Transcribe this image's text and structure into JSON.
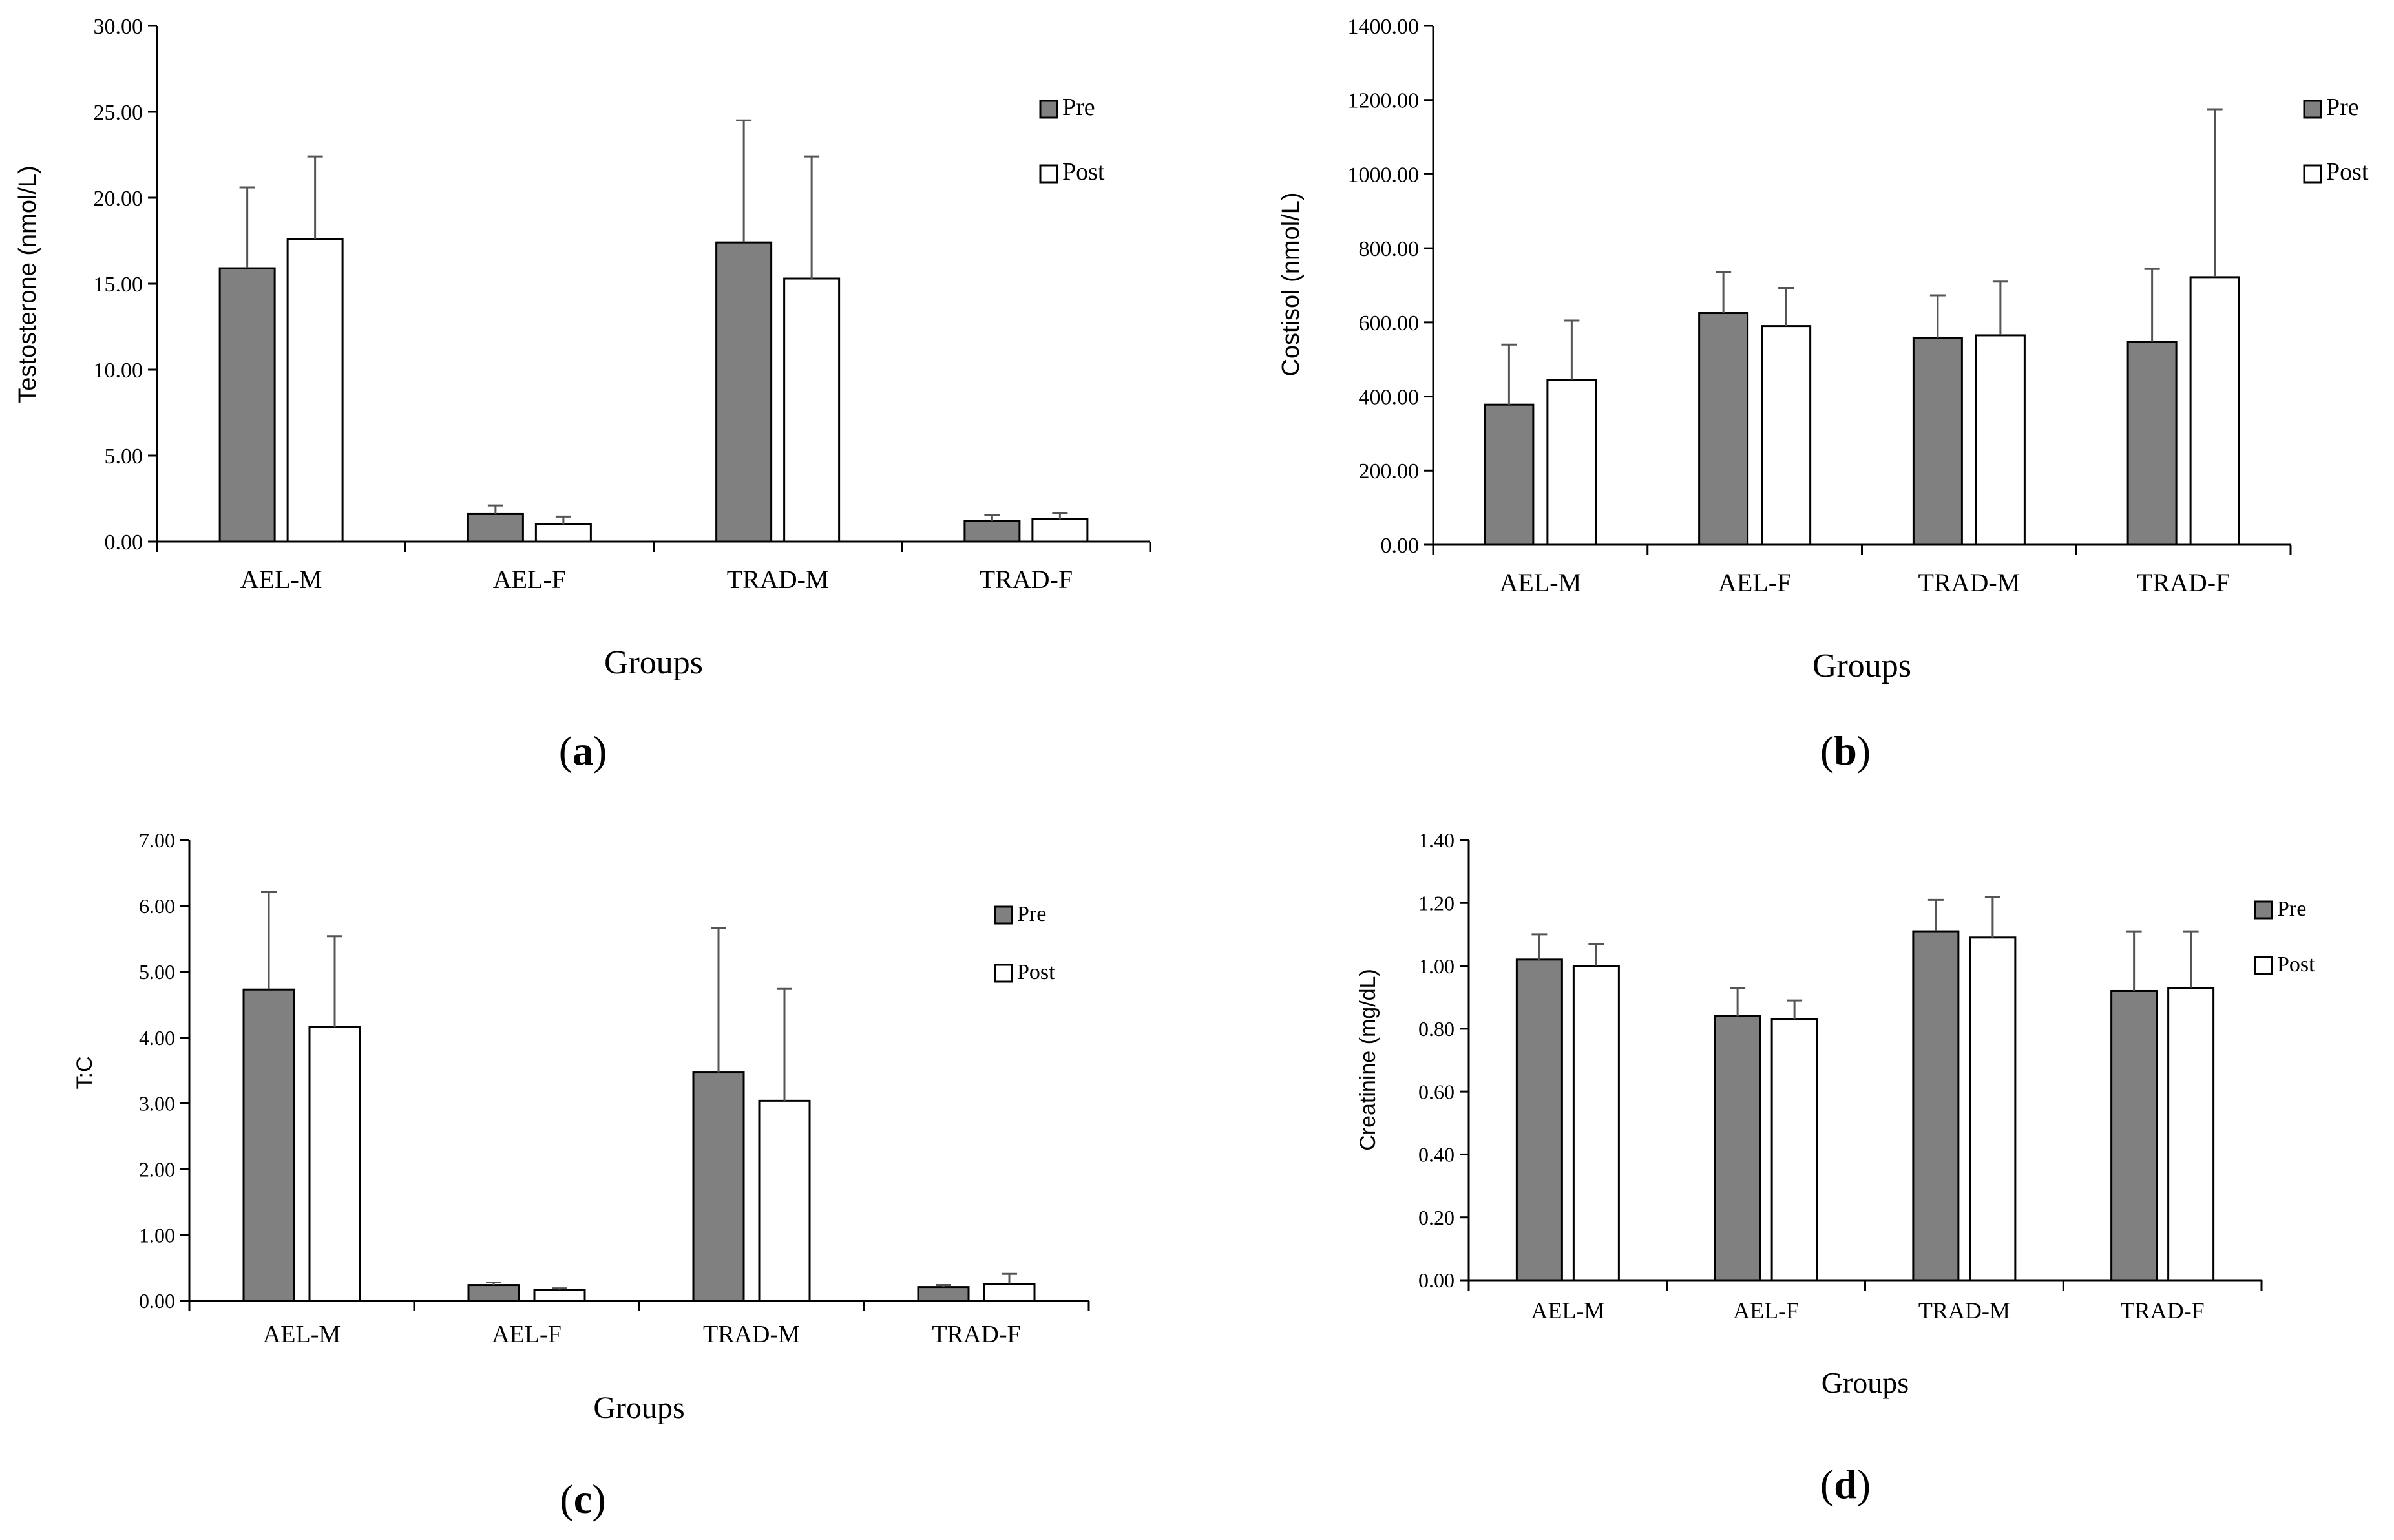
{
  "colors": {
    "pre": "#808080",
    "post": "#ffffff",
    "stroke": "#000000"
  },
  "chart_data": [
    {
      "id": "a",
      "caption": {
        "open": "(",
        "letter": "a",
        "close": ")"
      },
      "type": "bar",
      "title": "",
      "ylabel": "Testosterone (nmol/L)",
      "xlabel": "Groups",
      "ylim": [
        0,
        30
      ],
      "yticks": [
        "0.00",
        "5.00",
        "10.00",
        "15.00",
        "20.00",
        "25.00",
        "30.00"
      ],
      "categories": [
        "AEL-M",
        "AEL-F",
        "TRAD-M",
        "TRAD-F"
      ],
      "legend": "right",
      "series": [
        {
          "name": "Pre",
          "values": [
            15.9,
            1.6,
            17.4,
            1.2
          ],
          "errors": [
            4.7,
            0.5,
            7.1,
            0.35
          ]
        },
        {
          "name": "Post",
          "values": [
            17.6,
            1.0,
            15.3,
            1.3
          ],
          "errors": [
            4.8,
            0.45,
            7.1,
            0.35
          ]
        }
      ]
    },
    {
      "id": "b",
      "caption": {
        "open": "(",
        "letter": "b",
        "close": ")"
      },
      "type": "bar",
      "title": "",
      "ylabel": "Costisol (nmol/L)",
      "xlabel": "Groups",
      "ylim": [
        0,
        1400
      ],
      "yticks": [
        "0.00",
        "200.00",
        "400.00",
        "600.00",
        "800.00",
        "1000.00",
        "1200.00",
        "1400.00"
      ],
      "categories": [
        "AEL-M",
        "AEL-F",
        "TRAD-M",
        "TRAD-F"
      ],
      "legend": "right",
      "series": [
        {
          "name": "Pre",
          "values": [
            378,
            625,
            558,
            548
          ],
          "errors": [
            162,
            110,
            115,
            196
          ]
        },
        {
          "name": "Post",
          "values": [
            445,
            590,
            565,
            722
          ],
          "errors": [
            160,
            103,
            145,
            453
          ]
        }
      ]
    },
    {
      "id": "c",
      "caption": {
        "open": "(",
        "letter": "c",
        "close": ")"
      },
      "type": "bar",
      "title": "",
      "ylabel": "T:C",
      "xlabel": "Groups",
      "ylim": [
        0,
        7
      ],
      "yticks": [
        "0.00",
        "1.00",
        "2.00",
        "3.00",
        "4.00",
        "5.00",
        "6.00",
        "7.00"
      ],
      "categories": [
        "AEL-M",
        "AEL-F",
        "TRAD-M",
        "TRAD-F"
      ],
      "legend": "right",
      "series": [
        {
          "name": "Pre",
          "values": [
            4.73,
            0.24,
            3.47,
            0.21
          ],
          "errors": [
            1.48,
            0.04,
            2.2,
            0.03
          ]
        },
        {
          "name": "Post",
          "values": [
            4.16,
            0.17,
            3.04,
            0.26
          ],
          "errors": [
            1.38,
            0.02,
            1.7,
            0.15
          ]
        }
      ]
    },
    {
      "id": "d",
      "caption": {
        "open": "(",
        "letter": "d",
        "close": ")"
      },
      "type": "bar",
      "title": "",
      "ylabel": "Creatinine (mg/dL)",
      "xlabel": "Groups",
      "ylim": [
        0,
        1.4
      ],
      "yticks": [
        "0.00",
        "0.20",
        "0.40",
        "0.60",
        "0.80",
        "1.00",
        "1.20",
        "1.40"
      ],
      "categories": [
        "AEL-M",
        "AEL-F",
        "TRAD-M",
        "TRAD-F"
      ],
      "legend": "right",
      "series": [
        {
          "name": "Pre",
          "values": [
            1.02,
            0.84,
            1.11,
            0.92
          ],
          "errors": [
            0.08,
            0.09,
            0.1,
            0.19
          ]
        },
        {
          "name": "Post",
          "values": [
            1.0,
            0.83,
            1.09,
            0.93
          ],
          "errors": [
            0.07,
            0.06,
            0.13,
            0.18
          ]
        }
      ]
    }
  ]
}
